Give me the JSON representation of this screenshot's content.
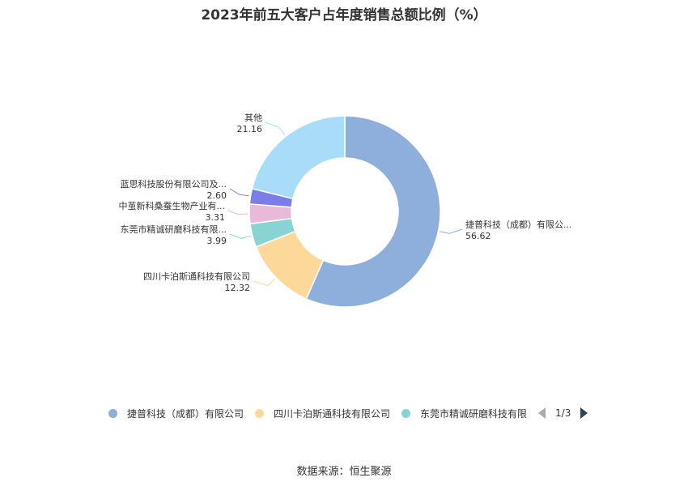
{
  "title": "2023年前五大客户占年度销售总额比例（%）",
  "source": "数据来源：恒生聚源",
  "legend": {
    "items": [
      {
        "label": "捷普科技（成都）有限公司",
        "color": "#8eaedb"
      },
      {
        "label": "四川卡泊斯通科技有限公司",
        "color": "#fdd89b"
      },
      {
        "label": "东莞市精诚研磨科技有限",
        "color": "#88d4d4"
      }
    ],
    "page": "1/3"
  },
  "chart_data": {
    "type": "pie",
    "donut": true,
    "slices": [
      {
        "name": "捷普科技（成都）有限公...",
        "value": 56.62,
        "color": "#8eaedb"
      },
      {
        "name": "四川卡泊斯通科技有限公司",
        "value": 12.32,
        "color": "#fdd89b"
      },
      {
        "name": "东莞市精诚研磨科技有限...",
        "value": 3.99,
        "color": "#88d4d4"
      },
      {
        "name": "中茧新科桑蚕生物产业有...",
        "value": 3.31,
        "color": "#e8b9d9"
      },
      {
        "name": "蓝思科技股份有限公司及...",
        "value": 2.6,
        "color": "#7b7ee6"
      },
      {
        "name": "其他",
        "value": 21.16,
        "color": "#a9dcf8"
      }
    ]
  }
}
